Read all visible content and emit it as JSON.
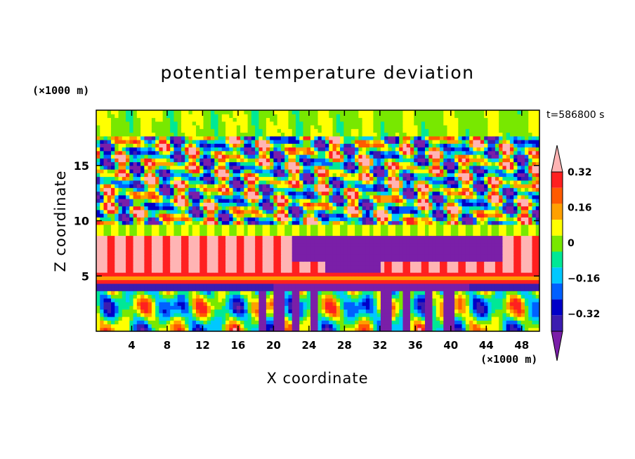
{
  "chart_data": {
    "type": "heatmap",
    "title": "potential temperature deviation",
    "xlabel": "X coordinate",
    "ylabel": "Z coordinate",
    "x_unit": "(×1000 m)",
    "y_unit": "(×1000 m)",
    "time_label": "t=586800 s",
    "xlim": [
      0,
      50
    ],
    "ylim": [
      0,
      20
    ],
    "x_ticks": [
      4,
      8,
      12,
      16,
      20,
      24,
      28,
      32,
      36,
      40,
      44,
      48
    ],
    "y_ticks": [
      5,
      10,
      15
    ],
    "colorbar": {
      "labels": [
        "0.32",
        "0.16",
        "0",
        "−0.16",
        "−0.32"
      ],
      "label_values": [
        0.32,
        0.16,
        0,
        -0.16,
        -0.32
      ],
      "levels": [
        -0.4,
        -0.32,
        -0.24,
        -0.16,
        -0.08,
        0,
        0.08,
        0.16,
        0.24,
        0.32,
        0.4
      ],
      "colors": [
        "#7a1fa8",
        "#3b1db0",
        "#0000c8",
        "#0060ff",
        "#00c8ff",
        "#00e896",
        "#78e800",
        "#ffff00",
        "#ffa000",
        "#ff5a00",
        "#ff2020",
        "#ffb4b4"
      ]
    }
  }
}
